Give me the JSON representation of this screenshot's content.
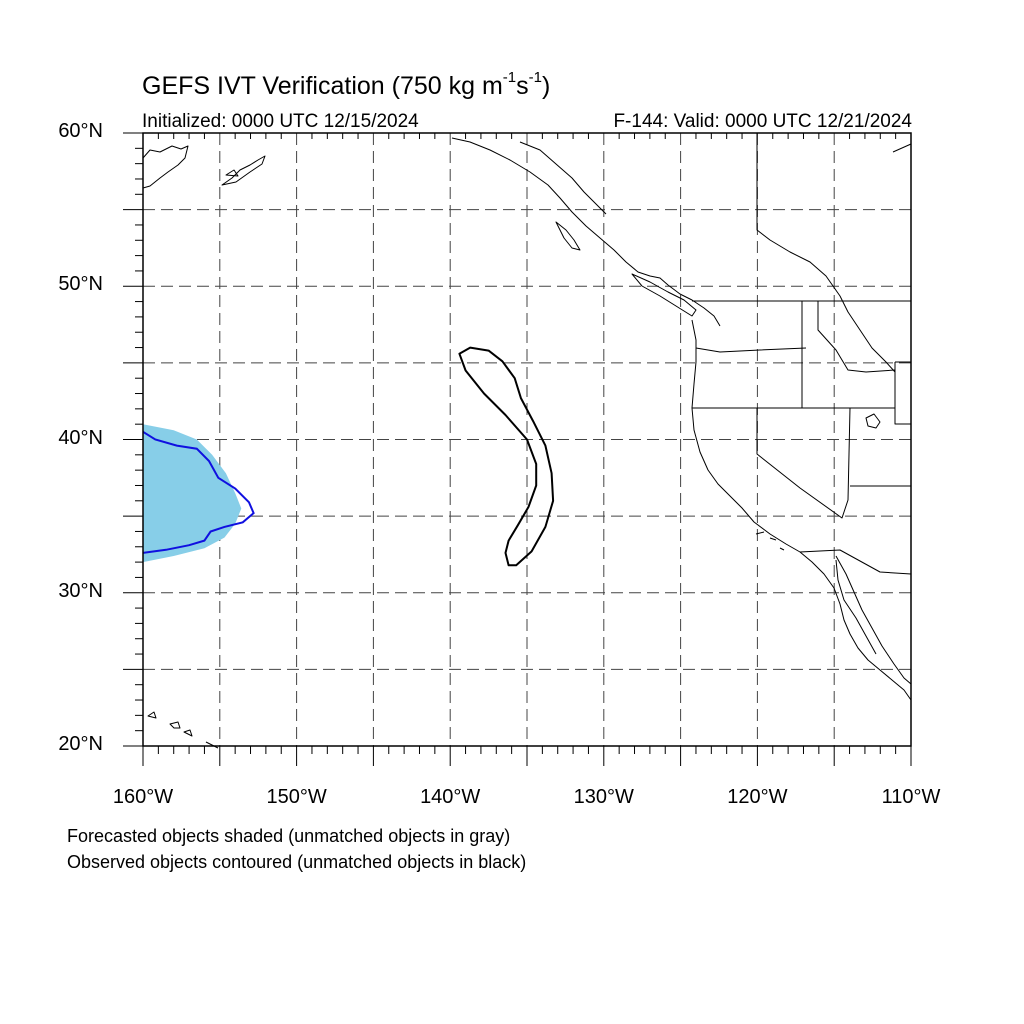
{
  "header": {
    "title_main": "GEFS IVT Verification (750 kg m",
    "title_exp1": "-1",
    "title_mid": "s",
    "title_exp2": "-1",
    "title_end": ")",
    "initialized": "Initialized: 0000 UTC 12/15/2024",
    "valid": "F-144: Valid: 0000 UTC 12/21/2024"
  },
  "axes": {
    "lat_range": [
      20,
      60
    ],
    "lon_range": [
      -160,
      -110
    ],
    "lat_ticks": [
      {
        "value": 60,
        "label": "60°N"
      },
      {
        "value": 50,
        "label": "50°N"
      },
      {
        "value": 40,
        "label": "40°N"
      },
      {
        "value": 30,
        "label": "30°N"
      },
      {
        "value": 20,
        "label": "20°N"
      }
    ],
    "lon_ticks": [
      {
        "value": -160,
        "label": "160°W"
      },
      {
        "value": -150,
        "label": "150°W"
      },
      {
        "value": -140,
        "label": "140°W"
      },
      {
        "value": -130,
        "label": "130°W"
      },
      {
        "value": -120,
        "label": "120°W"
      },
      {
        "value": -110,
        "label": "110°W"
      }
    ],
    "grid_interval_deg": 5,
    "grid_style": "dashed"
  },
  "colors": {
    "forecast_fill": "#87CEE8",
    "matched_observed_contour": "#1010e0",
    "unmatched_observed_contour": "#000000",
    "coastline": "#000000"
  },
  "objects": {
    "forecast_matched": [
      {
        "lon": -160,
        "lat": 41.0
      },
      {
        "lon": -158,
        "lat": 40.6
      },
      {
        "lon": -156.5,
        "lat": 40.0
      },
      {
        "lon": -155.5,
        "lat": 39.0
      },
      {
        "lon": -154.6,
        "lat": 37.8
      },
      {
        "lon": -154.0,
        "lat": 36.5
      },
      {
        "lon": -153.6,
        "lat": 35.5
      },
      {
        "lon": -154.0,
        "lat": 34.5
      },
      {
        "lon": -154.7,
        "lat": 33.6
      },
      {
        "lon": -156.0,
        "lat": 32.9
      },
      {
        "lon": -158.0,
        "lat": 32.4
      },
      {
        "lon": -160,
        "lat": 32.0
      }
    ],
    "observed_matched": [
      {
        "lon": -160,
        "lat": 40.5
      },
      {
        "lon": -159.2,
        "lat": 40.0
      },
      {
        "lon": -157.8,
        "lat": 39.6
      },
      {
        "lon": -156.5,
        "lat": 39.4
      },
      {
        "lon": -155.7,
        "lat": 38.6
      },
      {
        "lon": -155.1,
        "lat": 37.5
      },
      {
        "lon": -154.0,
        "lat": 36.8
      },
      {
        "lon": -153.1,
        "lat": 35.9
      },
      {
        "lon": -152.8,
        "lat": 35.2
      },
      {
        "lon": -153.5,
        "lat": 34.6
      },
      {
        "lon": -154.7,
        "lat": 34.3
      },
      {
        "lon": -155.6,
        "lat": 34.0
      },
      {
        "lon": -156.0,
        "lat": 33.4
      },
      {
        "lon": -157.0,
        "lat": 33.1
      },
      {
        "lon": -158.5,
        "lat": 32.8
      },
      {
        "lon": -160,
        "lat": 32.6
      }
    ],
    "observed_unmatched": [
      {
        "lon": -139.4,
        "lat": 45.6
      },
      {
        "lon": -138.7,
        "lat": 46.0
      },
      {
        "lon": -137.5,
        "lat": 45.8
      },
      {
        "lon": -136.6,
        "lat": 45.1
      },
      {
        "lon": -135.8,
        "lat": 44.0
      },
      {
        "lon": -135.4,
        "lat": 42.7
      },
      {
        "lon": -134.6,
        "lat": 41.2
      },
      {
        "lon": -133.8,
        "lat": 39.6
      },
      {
        "lon": -133.4,
        "lat": 37.8
      },
      {
        "lon": -133.3,
        "lat": 36.0
      },
      {
        "lon": -133.8,
        "lat": 34.3
      },
      {
        "lon": -134.7,
        "lat": 32.7
      },
      {
        "lon": -135.7,
        "lat": 31.8
      },
      {
        "lon": -136.2,
        "lat": 31.8
      },
      {
        "lon": -136.4,
        "lat": 32.6
      },
      {
        "lon": -136.2,
        "lat": 33.4
      },
      {
        "lon": -135.6,
        "lat": 34.4
      },
      {
        "lon": -134.9,
        "lat": 35.6
      },
      {
        "lon": -134.4,
        "lat": 37.0
      },
      {
        "lon": -134.4,
        "lat": 38.4
      },
      {
        "lon": -135.0,
        "lat": 40.0
      },
      {
        "lon": -136.4,
        "lat": 41.6
      },
      {
        "lon": -137.8,
        "lat": 43.0
      },
      {
        "lon": -139.0,
        "lat": 44.5
      }
    ]
  },
  "notes": {
    "line1": "Forecasted objects shaded (unmatched objects in gray)",
    "line2": "Observed objects contoured (unmatched objects in black)"
  }
}
